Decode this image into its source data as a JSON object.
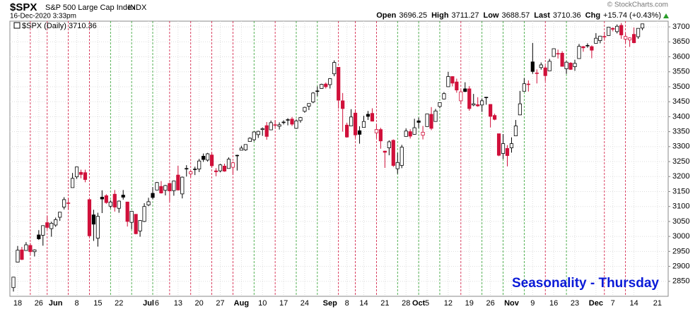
{
  "header": {
    "symbol": "$SPX",
    "name": "S&P 500 Large Cap Index",
    "exchange": "INDX",
    "timestamp": "16-Dec-2020 3:33pm",
    "source": "© StockCharts.com",
    "quote": [
      {
        "label": "Open",
        "value": 3696.25
      },
      {
        "label": "High",
        "value": 3711.27
      },
      {
        "label": "Low",
        "value": 3688.57
      },
      {
        "label": "Last",
        "value": 3710.36
      },
      {
        "label": "Chg",
        "value": "+15.74 (+0.43%)"
      }
    ]
  },
  "chart_data": {
    "type": "candlestick",
    "legend": "$SPX (Daily) 3710.36",
    "annotation": "Seasonality - Thursday",
    "grid": true,
    "ylim": [
      2800,
      3719
    ],
    "yticks": [
      2850,
      2900,
      2950,
      3000,
      3050,
      3100,
      3150,
      3200,
      3250,
      3300,
      3350,
      3400,
      3450,
      3500,
      3550,
      3600,
      3650,
      3700
    ],
    "x": [
      "May 15",
      "May 18",
      "May 19",
      "May 20",
      "May 21",
      "May 22",
      "May 26",
      "May 27",
      "May 28",
      "May 29",
      "Jun 1",
      "Jun 2",
      "Jun 3",
      "Jun 4",
      "Jun 5",
      "Jun 8",
      "Jun 9",
      "Jun 10",
      "Jun 11",
      "Jun 12",
      "Jun 15",
      "Jun 16",
      "Jun 17",
      "Jun 18",
      "Jun 19",
      "Jun 22",
      "Jun 23",
      "Jun 24",
      "Jun 25",
      "Jun 26",
      "Jun 29",
      "Jun 30",
      "Jul 1",
      "Jul 2",
      "Jul 6",
      "Jul 7",
      "Jul 8",
      "Jul 9",
      "Jul 10",
      "Jul 13",
      "Jul 14",
      "Jul 15",
      "Jul 16",
      "Jul 17",
      "Jul 20",
      "Jul 21",
      "Jul 22",
      "Jul 23",
      "Jul 24",
      "Jul 27",
      "Jul 28",
      "Jul 29",
      "Jul 30",
      "Jul 31",
      "Aug 3",
      "Aug 4",
      "Aug 5",
      "Aug 6",
      "Aug 7",
      "Aug 10",
      "Aug 11",
      "Aug 12",
      "Aug 13",
      "Aug 14",
      "Aug 17",
      "Aug 18",
      "Aug 19",
      "Aug 20",
      "Aug 21",
      "Aug 24",
      "Aug 25",
      "Aug 26",
      "Aug 27",
      "Aug 28",
      "Aug 31",
      "Sep 1",
      "Sep 2",
      "Sep 3",
      "Sep 4",
      "Sep 8",
      "Sep 9",
      "Sep 10",
      "Sep 11",
      "Sep 14",
      "Sep 15",
      "Sep 16",
      "Sep 17",
      "Sep 18",
      "Sep 21",
      "Sep 22",
      "Sep 23",
      "Sep 24",
      "Sep 25",
      "Sep 28",
      "Sep 29",
      "Sep 30",
      "Oct 1",
      "Oct 2",
      "Oct 5",
      "Oct 6",
      "Oct 7",
      "Oct 8",
      "Oct 9",
      "Oct 12",
      "Oct 13",
      "Oct 14",
      "Oct 15",
      "Oct 16",
      "Oct 19",
      "Oct 20",
      "Oct 21",
      "Oct 22",
      "Oct 23",
      "Oct 26",
      "Oct 27",
      "Oct 28",
      "Oct 29",
      "Oct 30",
      "Nov 2",
      "Nov 3",
      "Nov 4",
      "Nov 5",
      "Nov 6",
      "Nov 9",
      "Nov 10",
      "Nov 11",
      "Nov 12",
      "Nov 13",
      "Nov 16",
      "Nov 17",
      "Nov 18",
      "Nov 19",
      "Nov 20",
      "Nov 23",
      "Nov 24",
      "Nov 25",
      "Nov 27",
      "Nov 30",
      "Dec 1",
      "Dec 2",
      "Dec 3",
      "Dec 4",
      "Dec 7",
      "Dec 8",
      "Dec 9",
      "Dec 10",
      "Dec 11",
      "Dec 14",
      "Dec 15",
      "Dec 16"
    ],
    "open": [
      2829,
      2914,
      2955,
      2953,
      2970,
      2949,
      3005,
      3004,
      3046,
      3026,
      3038,
      3064,
      3098,
      3112,
      3163,
      3199,
      3214,
      3213,
      3123,
      3072,
      2994,
      3131,
      3136,
      3101,
      3141,
      3094,
      3138,
      3115,
      3047,
      3074,
      3018,
      3050,
      3105,
      3144,
      3155,
      3167,
      3154,
      3177,
      3153,
      3205,
      3142,
      3225,
      3209,
      3224,
      3225,
      3268,
      3255,
      3272,
      3219,
      3219,
      3235,
      3227,
      3231,
      3270,
      3288,
      3289,
      3317,
      3323,
      3340,
      3357,
      3370,
      3356,
      3372,
      3368,
      3380,
      3388,
      3392,
      3361,
      3387,
      3418,
      3435,
      3449,
      3486,
      3494,
      3509,
      3507,
      3543,
      3565,
      3453,
      3372,
      3369,
      3412,
      3353,
      3364,
      3408,
      3411,
      3346,
      3357,
      3285,
      3296,
      3321,
      3226,
      3237,
      3334,
      3350,
      3341,
      3386,
      3338,
      3367,
      3408,
      3384,
      3434,
      3459,
      3500,
      3534,
      3516,
      3453,
      3493,
      3493,
      3439,
      3440,
      3439,
      3464,
      3441,
      3404,
      3343,
      3277,
      3294,
      3296,
      3336,
      3406,
      3485,
      3508,
      3583,
      3544,
      3564,
      3563,
      3553,
      3601,
      3611,
      3612,
      3560,
      3579,
      3567,
      3594,
      3634,
      3638,
      3634,
      3645,
      3654,
      3668,
      3671,
      3695,
      3684,
      3705,
      3659,
      3656,
      3675,
      3667,
      3696
    ],
    "high": [
      2865,
      2968,
      2965,
      2981,
      2978,
      2957,
      3021,
      3037,
      3068,
      3049,
      3063,
      3082,
      3131,
      3128,
      3212,
      3233,
      3223,
      3223,
      3123,
      3089,
      3079,
      3154,
      3141,
      3121,
      3155,
      3120,
      3155,
      3116,
      3085,
      3074,
      3054,
      3111,
      3129,
      3165,
      3182,
      3185,
      3172,
      3180,
      3186,
      3236,
      3200,
      3238,
      3220,
      3233,
      3259,
      3277,
      3279,
      3280,
      3228,
      3242,
      3243,
      3264,
      3250,
      3273,
      3303,
      3307,
      3331,
      3351,
      3353,
      3364,
      3382,
      3387,
      3388,
      3381,
      3388,
      3395,
      3399,
      3391,
      3399,
      3433,
      3444,
      3482,
      3501,
      3510,
      3514,
      3529,
      3588,
      3565,
      3479,
      3380,
      3425,
      3425,
      3368,
      3403,
      3419,
      3428,
      3376,
      3363,
      3286,
      3321,
      3324,
      3279,
      3306,
      3361,
      3358,
      3393,
      3397,
      3369,
      3409,
      3432,
      3426,
      3447,
      3482,
      3550,
      3535,
      3527,
      3489,
      3515,
      3502,
      3476,
      3465,
      3461,
      3466,
      3441,
      3410,
      3343,
      3342,
      3305,
      3331,
      3389,
      3486,
      3529,
      3521,
      3646,
      3558,
      3581,
      3570,
      3593,
      3628,
      3624,
      3619,
      3585,
      3582,
      3590,
      3643,
      3636,
      3645,
      3638,
      3679,
      3670,
      3683,
      3700,
      3698,
      3708,
      3713,
      3678,
      3665,
      3698,
      3695,
      3711
    ],
    "low": [
      2816,
      2914,
      2921,
      2953,
      2938,
      2933,
      2988,
      2969,
      3024,
      2999,
      3032,
      3052,
      3090,
      3090,
      3163,
      3192,
      3194,
      3181,
      2999,
      2985,
      2966,
      3078,
      3109,
      3094,
      3083,
      3079,
      3123,
      3033,
      3024,
      3007,
      2999,
      3048,
      3101,
      3124,
      3155,
      3143,
      3137,
      3116,
      3136,
      3154,
      3127,
      3200,
      3198,
      3205,
      3215,
      3249,
      3250,
      3229,
      3201,
      3214,
      3216,
      3227,
      3205,
      3220,
      3288,
      3286,
      3317,
      3318,
      3329,
      3336,
      3323,
      3355,
      3364,
      3357,
      3374,
      3371,
      3369,
      3360,
      3380,
      3413,
      3422,
      3445,
      3469,
      3493,
      3494,
      3494,
      3535,
      3427,
      3350,
      3330,
      3369,
      3330,
      3310,
      3364,
      3389,
      3384,
      3328,
      3293,
      3229,
      3271,
      3232,
      3209,
      3228,
      3334,
      3327,
      3340,
      3362,
      3324,
      3367,
      3355,
      3384,
      3428,
      3458,
      3500,
      3501,
      3480,
      3441,
      3482,
      3420,
      3435,
      3433,
      3416,
      3440,
      3364,
      3388,
      3268,
      3259,
      3234,
      3280,
      3336,
      3405,
      3485,
      3484,
      3543,
      3511,
      3557,
      3519,
      3553,
      3601,
      3594,
      3567,
      3543,
      3556,
      3553,
      3594,
      3617,
      3630,
      3595,
      3645,
      3645,
      3658,
      3670,
      3685,
      3678,
      3660,
      3645,
      3633,
      3645,
      3660,
      3689
    ],
    "close": [
      2864,
      2954,
      2923,
      2972,
      2949,
      2955,
      2992,
      3036,
      3030,
      3044,
      3056,
      3081,
      3123,
      3112,
      3194,
      3232,
      3207,
      3190,
      3002,
      3041,
      3067,
      3125,
      3113,
      3115,
      3098,
      3118,
      3131,
      3050,
      3084,
      3009,
      3053,
      3100,
      3116,
      3130,
      3180,
      3145,
      3170,
      3152,
      3185,
      3155,
      3198,
      3227,
      3216,
      3225,
      3252,
      3257,
      3276,
      3236,
      3216,
      3239,
      3218,
      3258,
      3246,
      3271,
      3295,
      3307,
      3328,
      3349,
      3351,
      3360,
      3334,
      3380,
      3373,
      3373,
      3382,
      3390,
      3375,
      3386,
      3397,
      3431,
      3444,
      3479,
      3485,
      3508,
      3500,
      3527,
      3581,
      3455,
      3427,
      3332,
      3399,
      3339,
      3341,
      3384,
      3401,
      3385,
      3357,
      3319,
      3281,
      3316,
      3237,
      3247,
      3298,
      3352,
      3335,
      3363,
      3381,
      3348,
      3409,
      3361,
      3419,
      3447,
      3477,
      3534,
      3512,
      3489,
      3483,
      3484,
      3427,
      3443,
      3436,
      3453,
      3465,
      3401,
      3391,
      3271,
      3310,
      3270,
      3310,
      3369,
      3443,
      3510,
      3509,
      3551,
      3546,
      3573,
      3537,
      3585,
      3627,
      3610,
      3568,
      3582,
      3558,
      3578,
      3635,
      3630,
      3638,
      3622,
      3662,
      3669,
      3667,
      3699,
      3692,
      3702,
      3673,
      3668,
      3663,
      3647,
      3695,
      3710
    ],
    "xticks": [
      {
        "value": "May 18",
        "label": "18"
      },
      {
        "value": "May 26",
        "label": "26"
      },
      {
        "value": "Jun 1",
        "label": "Jun"
      },
      {
        "value": "Jun 8",
        "label": "8"
      },
      {
        "value": "Jun 15",
        "label": "15"
      },
      {
        "value": "Jun 22",
        "label": "22"
      },
      {
        "value": "Jul 1",
        "label": "Jul"
      },
      {
        "value": "Jul 6",
        "label": "6"
      },
      {
        "value": "Jul 13",
        "label": "13"
      },
      {
        "value": "Jul 20",
        "label": "20"
      },
      {
        "value": "Jul 27",
        "label": "27"
      },
      {
        "value": "Aug 3",
        "label": "Aug"
      },
      {
        "value": "Aug 10",
        "label": "10"
      },
      {
        "value": "Aug 17",
        "label": "17"
      },
      {
        "value": "Aug 24",
        "label": "24"
      },
      {
        "value": "Sep 1",
        "label": "Sep"
      },
      {
        "value": "Sep 8",
        "label": "8"
      },
      {
        "value": "Sep 14",
        "label": "14"
      },
      {
        "value": "Sep 21",
        "label": "21"
      },
      {
        "value": "Sep 28",
        "label": "28"
      },
      {
        "value": "Oct 1",
        "label": "Oct"
      },
      {
        "value": "Oct 5",
        "label": "5"
      },
      {
        "value": "Oct 12",
        "label": "12"
      },
      {
        "value": "Oct 19",
        "label": "19"
      },
      {
        "value": "Oct 26",
        "label": "26"
      },
      {
        "value": "Nov 2",
        "label": "Nov"
      },
      {
        "value": "Nov 9",
        "label": "9"
      },
      {
        "value": "Nov 16",
        "label": "16"
      },
      {
        "value": "Nov 23",
        "label": "23"
      },
      {
        "value": "Dec 1",
        "label": "Dec"
      },
      {
        "value": "Dec 7",
        "label": "7"
      },
      {
        "value": "Dec 14",
        "label": "14"
      },
      {
        "value": "Dec 21",
        "label": "21"
      }
    ]
  }
}
